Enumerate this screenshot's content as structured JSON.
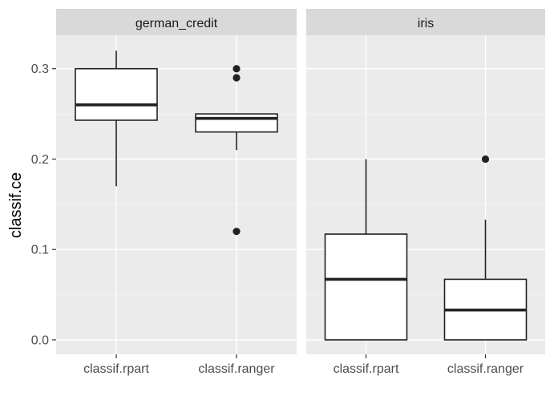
{
  "chart_data": {
    "type": "boxplot",
    "ylabel": "classif.ce",
    "xlabel": "",
    "ylim": [
      -0.016,
      0.337
    ],
    "y_ticks": [
      0.0,
      0.1,
      0.2,
      0.3
    ],
    "y_tick_labels": [
      "0.0",
      "0.1",
      "0.2",
      "0.3"
    ],
    "categories": [
      "classif.rpart",
      "classif.ranger"
    ],
    "grid": true,
    "legend": "none",
    "colors": {
      "panel": "#ebebeb",
      "strip": "#d9d9d9",
      "box_fill": "#ffffff",
      "box_line": "#222222"
    },
    "panels": [
      {
        "title": "german_credit",
        "boxes": [
          {
            "category": "classif.rpart",
            "whisker_low": 0.17,
            "q1": 0.243,
            "median": 0.26,
            "q3": 0.3,
            "whisker_high": 0.32,
            "outliers": []
          },
          {
            "category": "classif.ranger",
            "whisker_low": 0.21,
            "q1": 0.23,
            "median": 0.245,
            "q3": 0.25,
            "whisker_high": 0.25,
            "outliers": [
              0.3,
              0.29,
              0.12
            ]
          }
        ]
      },
      {
        "title": "iris",
        "boxes": [
          {
            "category": "classif.rpart",
            "whisker_low": 0.0,
            "q1": 0.0,
            "median": 0.067,
            "q3": 0.117,
            "whisker_high": 0.2,
            "outliers": []
          },
          {
            "category": "classif.ranger",
            "whisker_low": 0.0,
            "q1": 0.0,
            "median": 0.033,
            "q3": 0.067,
            "whisker_high": 0.133,
            "outliers": [
              0.2
            ]
          }
        ]
      }
    ]
  }
}
